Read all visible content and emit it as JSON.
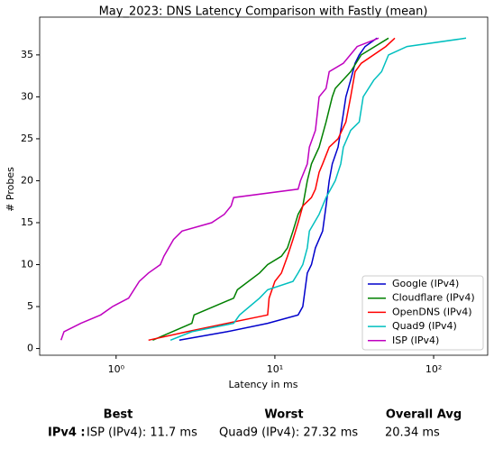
{
  "chart_data": {
    "type": "line",
    "title": "May_2023: DNS Latency Comparison with Fastly (mean)",
    "xlabel": "Latency in ms",
    "ylabel": "# Probes",
    "xscale": "log",
    "xlim": [
      0.33,
      219
    ],
    "ylim": [
      -0.8,
      39.5
    ],
    "xticks": [
      {
        "value": 1,
        "label": "10⁰"
      },
      {
        "value": 10,
        "label": "10¹"
      },
      {
        "value": 100,
        "label": "10²"
      }
    ],
    "yticks": [
      0,
      5,
      10,
      15,
      20,
      25,
      30,
      35
    ],
    "legend": "lower right",
    "series": [
      {
        "name": "Google (IPv4)",
        "color": "#0000cc",
        "x": [
          2.5,
          5,
          9,
          14,
          15,
          15.5,
          16,
          17,
          18,
          20,
          21,
          22,
          23,
          25,
          26,
          27,
          28,
          30,
          32,
          34,
          37,
          44
        ],
        "values": [
          1,
          2,
          3,
          4,
          5,
          7,
          9,
          10,
          12,
          14,
          17,
          20,
          22,
          24,
          26,
          28,
          30,
          32,
          34,
          35,
          36,
          37
        ]
      },
      {
        "name": "Cloudflare (IPv4)",
        "color": "#008000",
        "x": [
          1.7,
          3,
          3.1,
          5.5,
          5.8,
          8,
          9,
          11,
          12,
          13,
          14,
          15,
          16,
          17,
          19,
          21,
          23,
          24,
          30,
          35,
          52
        ],
        "values": [
          1,
          3,
          4,
          6,
          7,
          9,
          10,
          11,
          12,
          14,
          16,
          17,
          20,
          22,
          24,
          27,
          30,
          31,
          33,
          35,
          37
        ]
      },
      {
        "name": "OpenDNS (IPv4)",
        "color": "#ff0000",
        "x": [
          1.6,
          2.8,
          5,
          9,
          9.2,
          10,
          11,
          12,
          13,
          14,
          15,
          17,
          18,
          19,
          20,
          22,
          25,
          28,
          30,
          32,
          35,
          50,
          57
        ],
        "values": [
          1,
          2,
          3,
          4,
          6,
          8,
          9,
          11,
          13,
          15,
          17,
          18,
          19,
          21,
          22,
          24,
          25,
          27,
          30,
          33,
          34,
          36,
          37
        ]
      },
      {
        "name": "Quad9 (IPv4)",
        "color": "#00bfbf",
        "x": [
          2.2,
          3,
          5.5,
          6,
          8,
          9,
          13,
          14,
          15,
          16,
          16.5,
          19,
          21,
          24,
          26,
          27,
          30,
          34,
          36,
          42,
          47,
          52,
          68,
          160
        ],
        "values": [
          1,
          2,
          3,
          4,
          6,
          7,
          8,
          9,
          10,
          12,
          14,
          16,
          18,
          20,
          22,
          24,
          26,
          27,
          30,
          32,
          33,
          35,
          36,
          37
        ]
      },
      {
        "name": "ISP (IPv4)",
        "color": "#bf00bf",
        "x": [
          0.45,
          0.47,
          0.6,
          0.8,
          0.95,
          1.2,
          1.4,
          1.6,
          1.9,
          2.0,
          2.3,
          2.6,
          4,
          4.8,
          5.3,
          5.5,
          14,
          14.5,
          16,
          16.5,
          18,
          18.5,
          19,
          21,
          22,
          27,
          33,
          45
        ],
        "values": [
          1,
          2,
          3,
          4,
          5,
          6,
          8,
          9,
          10,
          11,
          13,
          14,
          15,
          16,
          17,
          18,
          19,
          20,
          22,
          24,
          26,
          28,
          30,
          31,
          33,
          34,
          36,
          37
        ]
      }
    ]
  },
  "summary": {
    "headers": [
      "Best",
      "Worst",
      "Overall Avg"
    ],
    "row_label": "IPv4 :",
    "cells": [
      "ISP (IPv4): 11.7 ms",
      "Quad9 (IPv4): 27.32 ms",
      "20.34 ms"
    ]
  }
}
